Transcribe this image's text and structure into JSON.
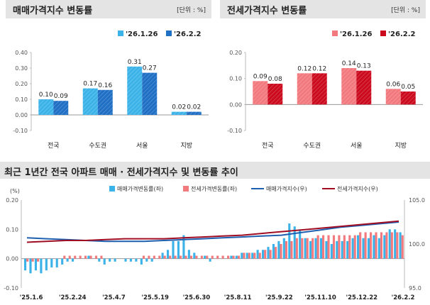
{
  "panels": {
    "left": {
      "title": "매매가격지수 변동률",
      "unit": "[단위 : %]"
    },
    "right": {
      "title": "전세가격지수 변동률",
      "unit": "[단위 : %]"
    }
  },
  "bottom": {
    "title": "최근 1년간 전국 아파트 매매 · 전세가격지수 및 변동률 추이",
    "unit_left": "(%)"
  },
  "colors": {
    "sale_prev": "#3cb3e8",
    "sale_curr": "#1f6fc5",
    "jeonse_prev": "#f2797d",
    "jeonse_curr": "#cc0a1e",
    "sale_index": "#1f5fb0",
    "jeonse_index": "#a00d23"
  },
  "chart_data": [
    {
      "type": "bar",
      "categories": [
        "전국",
        "수도권",
        "서울",
        "지방"
      ],
      "series": [
        {
          "name": "'26.1.26",
          "values": [
            0.1,
            0.17,
            0.31,
            0.02
          ]
        },
        {
          "name": "'26.2.2",
          "values": [
            0.09,
            0.16,
            0.27,
            0.02
          ]
        }
      ],
      "ylim": [
        -0.1,
        0.4
      ],
      "yticks": [
        "0.40",
        "0.30",
        "0.20",
        "0.10",
        "0.00",
        "-0.10"
      ],
      "legend": "top-right"
    },
    {
      "type": "bar",
      "categories": [
        "전국",
        "수도권",
        "서울",
        "지방"
      ],
      "series": [
        {
          "name": "'26.1.26",
          "values": [
            0.09,
            0.12,
            0.14,
            0.06
          ]
        },
        {
          "name": "'26.2.2",
          "values": [
            0.08,
            0.12,
            0.13,
            0.05
          ]
        }
      ],
      "ylim": [
        -0.1,
        0.2
      ],
      "yticks": [
        "0.20",
        "0.10",
        "0.00",
        "-0.10"
      ],
      "legend": "top-right"
    },
    {
      "type": "bar+line",
      "x_labels": [
        "'25.1.6",
        "'25.2.24",
        "'25.4.7",
        "'25.5.19",
        "'25.6.30",
        "'25.8.11",
        "'25.9.22",
        "'25.11.10",
        "'25.12.22",
        "'26.2.2"
      ],
      "series": [
        {
          "name": "매매가격변동률(좌)",
          "axis": "left",
          "values": [
            -0.04,
            -0.05,
            -0.04,
            -0.05,
            -0.04,
            -0.03,
            -0.03,
            -0.02,
            -0.01,
            -0.01,
            0.0,
            0.0,
            0.01,
            0.0,
            -0.01,
            -0.02,
            -0.01,
            -0.01,
            0.0,
            -0.01,
            -0.01,
            -0.01,
            -0.02,
            -0.01,
            -0.01,
            0.0,
            0.02,
            0.03,
            0.06,
            0.06,
            0.08,
            0.03,
            0.02,
            0.0,
            0.01,
            -0.01,
            0.0,
            0.0,
            0.0,
            0.01,
            0.01,
            0.02,
            0.02,
            0.02,
            0.03,
            0.03,
            0.04,
            0.05,
            0.06,
            0.07,
            0.12,
            0.11,
            0.1,
            0.07,
            0.06,
            0.07,
            0.07,
            0.06,
            0.05,
            0.06,
            0.06,
            0.06,
            0.07,
            0.08,
            0.07,
            0.07,
            0.08,
            0.07,
            0.08,
            0.1,
            0.1,
            0.09
          ]
        },
        {
          "name": "전세가격변동률(좌)",
          "axis": "left",
          "values": [
            -0.01,
            -0.01,
            -0.01,
            0.0,
            0.0,
            0.0,
            0.0,
            0.01,
            0.01,
            0.01,
            0.01,
            0.01,
            0.01,
            0.01,
            0.01,
            0.0,
            0.0,
            0.0,
            0.0,
            0.0,
            0.0,
            0.0,
            0.01,
            0.01,
            0.01,
            0.01,
            0.01,
            0.01,
            0.01,
            0.01,
            0.01,
            0.01,
            0.01,
            0.01,
            0.01,
            0.01,
            0.01,
            0.01,
            0.01,
            0.01,
            0.01,
            0.02,
            0.02,
            0.02,
            0.02,
            0.03,
            0.03,
            0.04,
            0.05,
            0.06,
            0.06,
            0.07,
            0.07,
            0.07,
            0.07,
            0.08,
            0.08,
            0.08,
            0.08,
            0.08,
            0.08,
            0.08,
            0.08,
            0.09,
            0.09,
            0.09,
            0.09,
            0.09,
            0.09,
            0.09,
            0.09,
            0.08
          ]
        },
        {
          "name": "매매가격지수(우)",
          "axis": "right",
          "values": [
            100.7,
            100.6,
            100.5,
            100.4,
            100.3,
            100.3,
            100.3,
            100.4,
            100.5,
            100.6,
            100.7,
            100.8,
            100.9,
            101.0,
            101.3,
            101.6,
            101.9,
            102.1,
            102.3,
            102.5
          ]
        },
        {
          "name": "전세가격지수(우)",
          "axis": "right",
          "values": [
            100.2,
            100.3,
            100.4,
            100.4,
            100.5,
            100.6,
            100.6,
            100.6,
            100.7,
            100.8,
            100.9,
            101.0,
            101.2,
            101.4,
            101.6,
            101.8,
            102.0,
            102.2,
            102.4,
            102.6
          ]
        }
      ],
      "ylim_left": [
        -0.1,
        0.2
      ],
      "yticks_left": [
        "0.20",
        "0.10",
        "0.00",
        "-0.10"
      ],
      "ylim_right": [
        95.0,
        105.0
      ],
      "yticks_right": [
        "105.0",
        "100.0",
        "95.0"
      ],
      "legend": "top"
    }
  ]
}
